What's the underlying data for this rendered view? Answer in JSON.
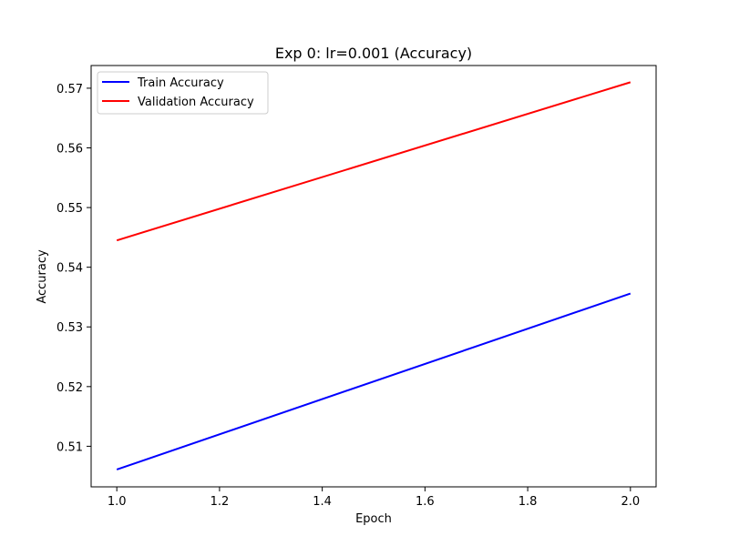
{
  "chart_data": {
    "type": "line",
    "title": "Exp 0: lr=0.001 (Accuracy)",
    "xlabel": "Epoch",
    "ylabel": "Accuracy",
    "xlim": [
      0.95,
      2.05
    ],
    "ylim": [
      0.5032,
      0.5738
    ],
    "x_ticks": [
      1.0,
      1.2,
      1.4,
      1.6,
      1.8,
      2.0
    ],
    "x_tick_labels": [
      "1.0",
      "1.2",
      "1.4",
      "1.6",
      "1.8",
      "2.0"
    ],
    "y_ticks": [
      0.51,
      0.52,
      0.53,
      0.54,
      0.55,
      0.56,
      0.57
    ],
    "y_tick_labels": [
      "0.51",
      "0.52",
      "0.53",
      "0.54",
      "0.55",
      "0.56",
      "0.57"
    ],
    "grid": false,
    "legend_position": "upper-left",
    "x": [
      1.0,
      2.0
    ],
    "series": [
      {
        "name": "Train Accuracy",
        "color": "#0000ff",
        "values": [
          0.5061,
          0.5356
        ]
      },
      {
        "name": "Validation Accuracy",
        "color": "#ff0000",
        "values": [
          0.5445,
          0.571
        ]
      }
    ]
  }
}
